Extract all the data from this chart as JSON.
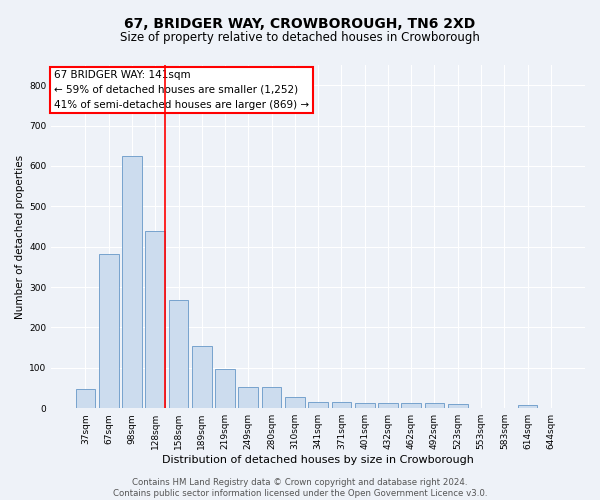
{
  "title": "67, BRIDGER WAY, CROWBOROUGH, TN6 2XD",
  "subtitle": "Size of property relative to detached houses in Crowborough",
  "xlabel": "Distribution of detached houses by size in Crowborough",
  "ylabel": "Number of detached properties",
  "categories": [
    "37sqm",
    "67sqm",
    "98sqm",
    "128sqm",
    "158sqm",
    "189sqm",
    "219sqm",
    "249sqm",
    "280sqm",
    "310sqm",
    "341sqm",
    "371sqm",
    "401sqm",
    "432sqm",
    "462sqm",
    "492sqm",
    "523sqm",
    "553sqm",
    "583sqm",
    "614sqm",
    "644sqm"
  ],
  "values": [
    47,
    383,
    625,
    440,
    268,
    155,
    97,
    52,
    52,
    27,
    16,
    16,
    12,
    12,
    12,
    12,
    10,
    0,
    0,
    8,
    0
  ],
  "bar_color": "#ccdcee",
  "bar_edge_color": "#6698c8",
  "vline_x_index": 3,
  "vline_color": "red",
  "annotation_title": "67 BRIDGER WAY: 141sqm",
  "annotation_line1": "← 59% of detached houses are smaller (1,252)",
  "annotation_line2": "41% of semi-detached houses are larger (869) →",
  "annotation_box_color": "white",
  "annotation_box_edge_color": "red",
  "ylim": [
    0,
    850
  ],
  "yticks": [
    0,
    100,
    200,
    300,
    400,
    500,
    600,
    700,
    800
  ],
  "footer_line1": "Contains HM Land Registry data © Crown copyright and database right 2024.",
  "footer_line2": "Contains public sector information licensed under the Open Government Licence v3.0.",
  "background_color": "#eef2f8",
  "grid_color": "#ffffff",
  "title_fontsize": 10,
  "subtitle_fontsize": 8.5,
  "ylabel_fontsize": 7.5,
  "xlabel_fontsize": 8,
  "tick_fontsize": 6.5,
  "annotation_fontsize": 7.5,
  "footer_fontsize": 6.2
}
